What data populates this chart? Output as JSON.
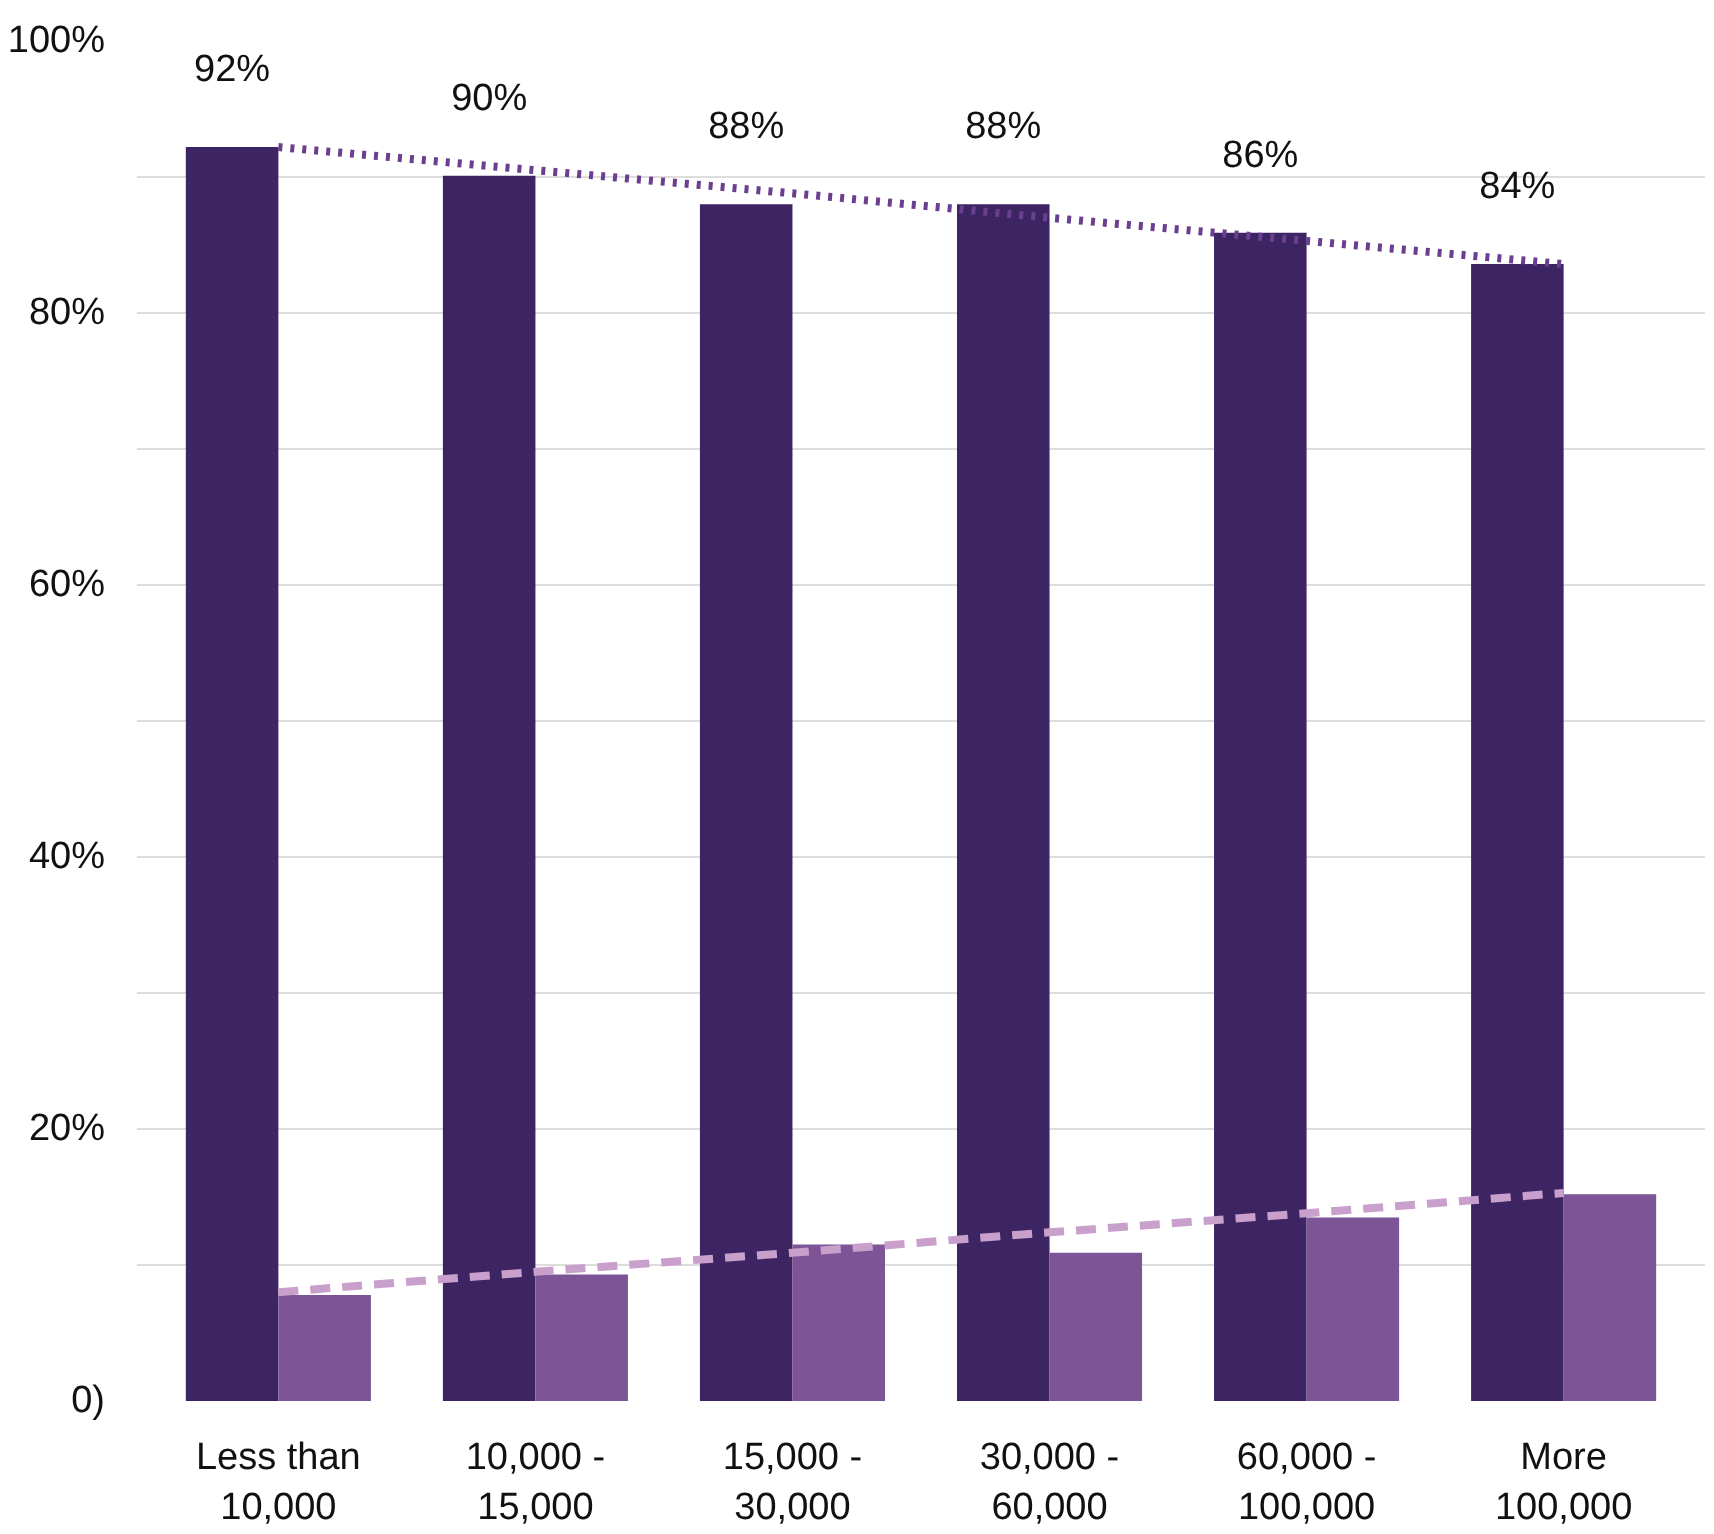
{
  "chart_data": {
    "type": "bar",
    "categories": [
      "Less than 10,000",
      "10,000 - 15,000",
      "15,000 - 30,000",
      "30,000 - 60,000",
      "60,000 - 100,000",
      "More 100,000"
    ],
    "series": [
      {
        "color": "#3d2462",
        "values": [
          92.2,
          90.1,
          88.0,
          88.0,
          85.9,
          83.6
        ],
        "value_labels": [
          "92%",
          "90%",
          "88%",
          "88%",
          "86%",
          "84%"
        ]
      },
      {
        "color": "#7d5495",
        "values": [
          7.8,
          9.3,
          11.5,
          10.9,
          13.5,
          15.2
        ]
      },
      {
        "type": "line",
        "color": "#6b3f8f",
        "line_style": "dotted",
        "values": [
          92.2,
          90.5,
          88.8,
          87.0,
          85.3,
          83.6
        ]
      },
      {
        "type": "line",
        "color": "#c9a0cc",
        "line_style": "dashed",
        "values": [
          8.0,
          9.5,
          10.9,
          12.4,
          13.8,
          15.3
        ]
      }
    ],
    "ylim": [
      0,
      100
    ],
    "yticks": [
      {
        "value": 0,
        "label": "0)"
      },
      {
        "value": 10,
        "label": null
      },
      {
        "value": 20,
        "label": "20%"
      },
      {
        "value": 30,
        "label": null
      },
      {
        "value": 40,
        "label": "40%"
      },
      {
        "value": 50,
        "label": null
      },
      {
        "value": 60,
        "label": "60%"
      },
      {
        "value": 70,
        "label": null
      },
      {
        "value": 80,
        "label": "80%"
      },
      {
        "value": 90,
        "label": null
      },
      {
        "value": 100,
        "label": "100%"
      }
    ],
    "grid": "y"
  }
}
